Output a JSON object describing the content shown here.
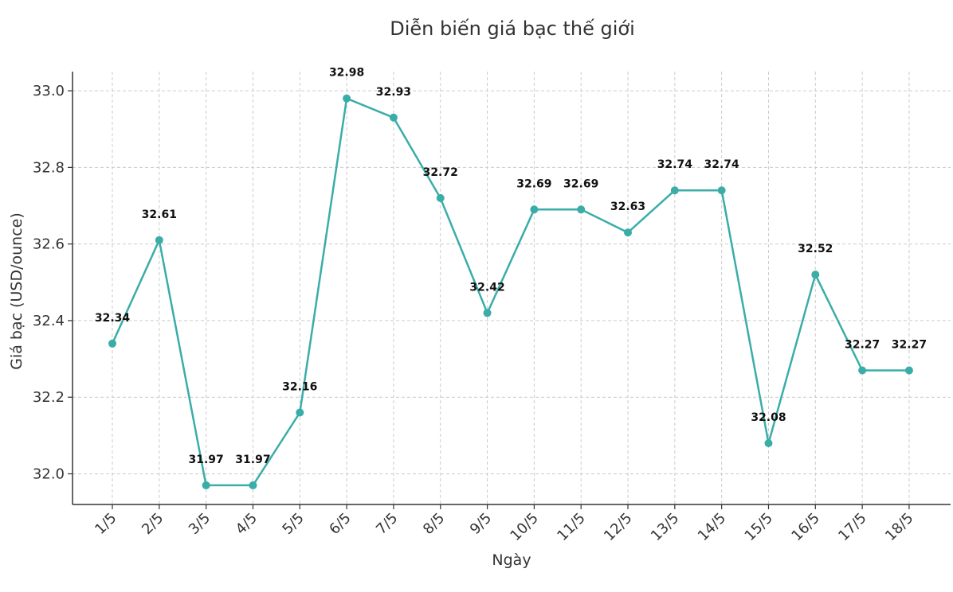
{
  "chart_data": {
    "type": "line",
    "title": "Diễn biến giá bạc thế giới",
    "xlabel": "Ngày",
    "ylabel": "Giá bạc (USD/ounce)",
    "categories": [
      "1/5",
      "2/5",
      "3/5",
      "4/5",
      "5/5",
      "6/5",
      "7/5",
      "8/5",
      "9/5",
      "10/5",
      "11/5",
      "12/5",
      "13/5",
      "14/5",
      "15/5",
      "16/5",
      "17/5",
      "18/5"
    ],
    "series": [
      {
        "values": [
          32.34,
          32.61,
          31.97,
          31.97,
          32.16,
          32.98,
          32.93,
          32.72,
          32.42,
          32.69,
          32.69,
          32.63,
          32.74,
          32.74,
          32.08,
          32.52,
          32.27,
          32.27
        ],
        "color": "#3aada8"
      }
    ],
    "data_labels": [
      "32.34",
      "32.61",
      "31.97",
      "31.97",
      "32.16",
      "32.98",
      "32.93",
      "32.72",
      "32.42",
      "32.69",
      "32.69",
      "32.63",
      "32.74",
      "32.74",
      "32.08",
      "32.52",
      "32.27",
      "32.27"
    ],
    "yticks": [
      "32.0",
      "32.2",
      "32.4",
      "32.6",
      "32.8",
      "33.0"
    ],
    "ylim": [
      31.92,
      33.05
    ],
    "grid": true,
    "legend": "none"
  }
}
